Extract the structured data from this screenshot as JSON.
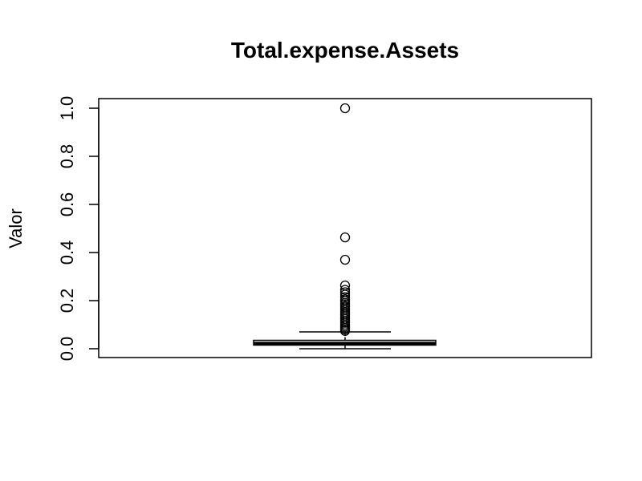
{
  "chart_data": {
    "type": "boxplot",
    "title": "Total.expense.Assets",
    "xlabel": "",
    "ylabel": "Valor",
    "ylim": [
      0,
      1
    ],
    "yticks": [
      0.0,
      0.2,
      0.4,
      0.6,
      0.8,
      1.0
    ],
    "ytick_labels": [
      "0.0",
      "0.2",
      "0.4",
      "0.6",
      "0.8",
      "1.0"
    ],
    "grid": false,
    "box": {
      "lower_whisker": 0.0,
      "q1": 0.015,
      "median": 0.022,
      "q3": 0.035,
      "upper_whisker": 0.07
    },
    "outliers": [
      1.0,
      0.463,
      0.37,
      0.263,
      0.245,
      0.235,
      0.225,
      0.215,
      0.205,
      0.198,
      0.19,
      0.183,
      0.175,
      0.168,
      0.16,
      0.152,
      0.145,
      0.138,
      0.13,
      0.123,
      0.115,
      0.108,
      0.1,
      0.093,
      0.086,
      0.08,
      0.074
    ]
  }
}
